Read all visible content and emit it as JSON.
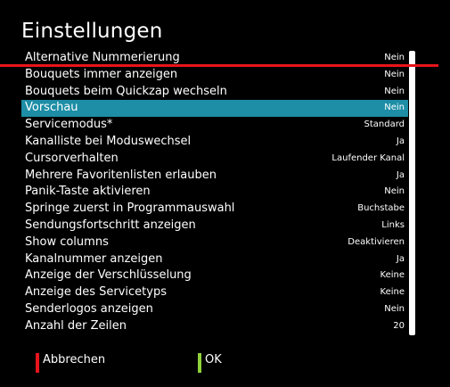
{
  "title": "Einstellungen",
  "settings": {
    "rows": [
      {
        "label": "Alternative Nummerierung",
        "value": "Nein",
        "selected": false
      },
      {
        "label": "Bouquets immer anzeigen",
        "value": "Nein",
        "selected": false
      },
      {
        "label": "Bouquets beim Quickzap wechseln",
        "value": "Nein",
        "selected": false
      },
      {
        "label": "Vorschau",
        "value": "Nein",
        "selected": true
      },
      {
        "label": "Servicemodus*",
        "value": "Standard",
        "selected": false
      },
      {
        "label": "Kanalliste bei Moduswechsel",
        "value": "Ja",
        "selected": false
      },
      {
        "label": "Cursorverhalten",
        "value": "Laufender Kanal",
        "selected": false
      },
      {
        "label": "Mehrere Favoritenlisten erlauben",
        "value": "Ja",
        "selected": false
      },
      {
        "label": "Panik-Taste aktivieren",
        "value": "Nein",
        "selected": false
      },
      {
        "label": "Springe zuerst in Programmauswahl",
        "value": "Buchstabe",
        "selected": false
      },
      {
        "label": "Sendungsfortschritt anzeigen",
        "value": "Links",
        "selected": false
      },
      {
        "label": "Show columns",
        "value": "Deaktivieren",
        "selected": false
      },
      {
        "label": "Kanalnummer anzeigen",
        "value": "Ja",
        "selected": false
      },
      {
        "label": "Anzeige der Verschlüsselung",
        "value": "Keine",
        "selected": false
      },
      {
        "label": "Anzeige des Servicetyps",
        "value": "Keine",
        "selected": false
      },
      {
        "label": "Senderlogos anzeigen",
        "value": "Nein",
        "selected": false
      },
      {
        "label": "Anzahl der Zeilen",
        "value": "20",
        "selected": false
      }
    ]
  },
  "footer": {
    "cancel_label": "Abbrechen",
    "ok_label": "OK"
  },
  "colors": {
    "background": "#000000",
    "selection": "#1d8ea6",
    "red_key": "#e8141b",
    "green_key": "#8fd13a",
    "text": "#ffffff"
  }
}
